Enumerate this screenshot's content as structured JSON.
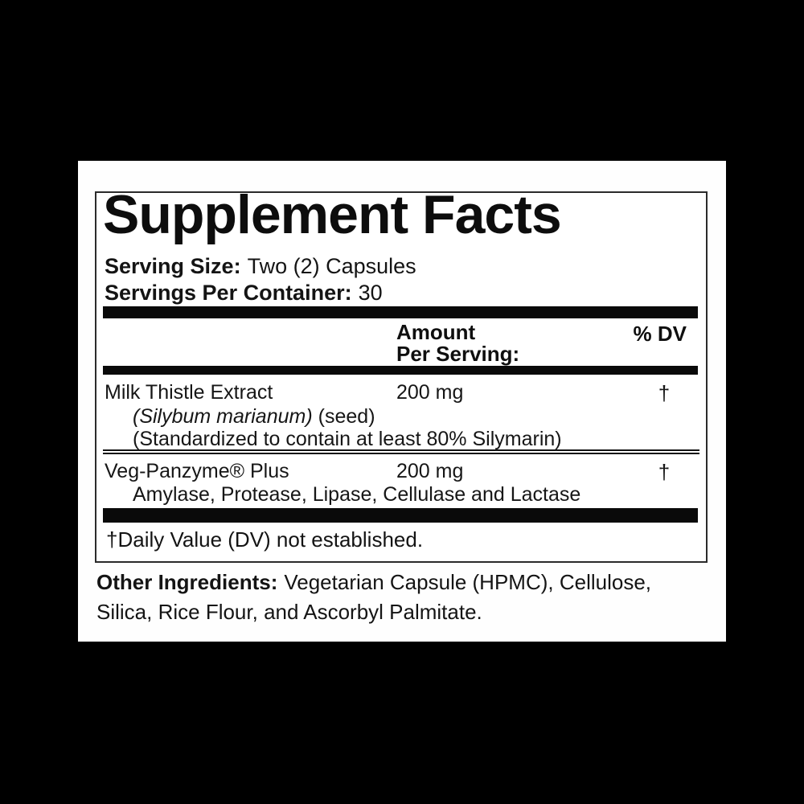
{
  "page": {
    "background_color": "#000000",
    "panel_background": "#ffffff",
    "text_color": "#111111",
    "rule_color": "#0a0a0a"
  },
  "label": {
    "title": "Supplement Facts",
    "serving_size": {
      "label": "Serving Size:",
      "value": "Two (2) Capsules"
    },
    "servings_per_container": {
      "label": "Servings Per Container:",
      "value": "30"
    },
    "columns": {
      "amount_line1": "Amount",
      "amount_line2": "Per Serving:",
      "dv": "% DV"
    },
    "rows": [
      {
        "name": "Milk Thistle Extract",
        "amount": "200 mg",
        "dv": "†",
        "detail_italic": "(Silybum marianum)",
        "detail_plain": "(seed)",
        "detail_line2": "(Standardized to contain at least 80% Silymarin)"
      },
      {
        "name": "Veg-Panzyme® Plus",
        "amount": "200 mg",
        "dv": "†",
        "detail_line": "Amylase, Protease, Lipase, Cellulase and Lactase"
      }
    ],
    "footnote": "†Daily Value (DV) not established.",
    "other_ingredients": {
      "label": "Other Ingredients:",
      "line1": "Vegetarian Capsule (HPMC), Cellulose,",
      "line2": "Silica, Rice Flour, and Ascorbyl Palmitate."
    }
  }
}
